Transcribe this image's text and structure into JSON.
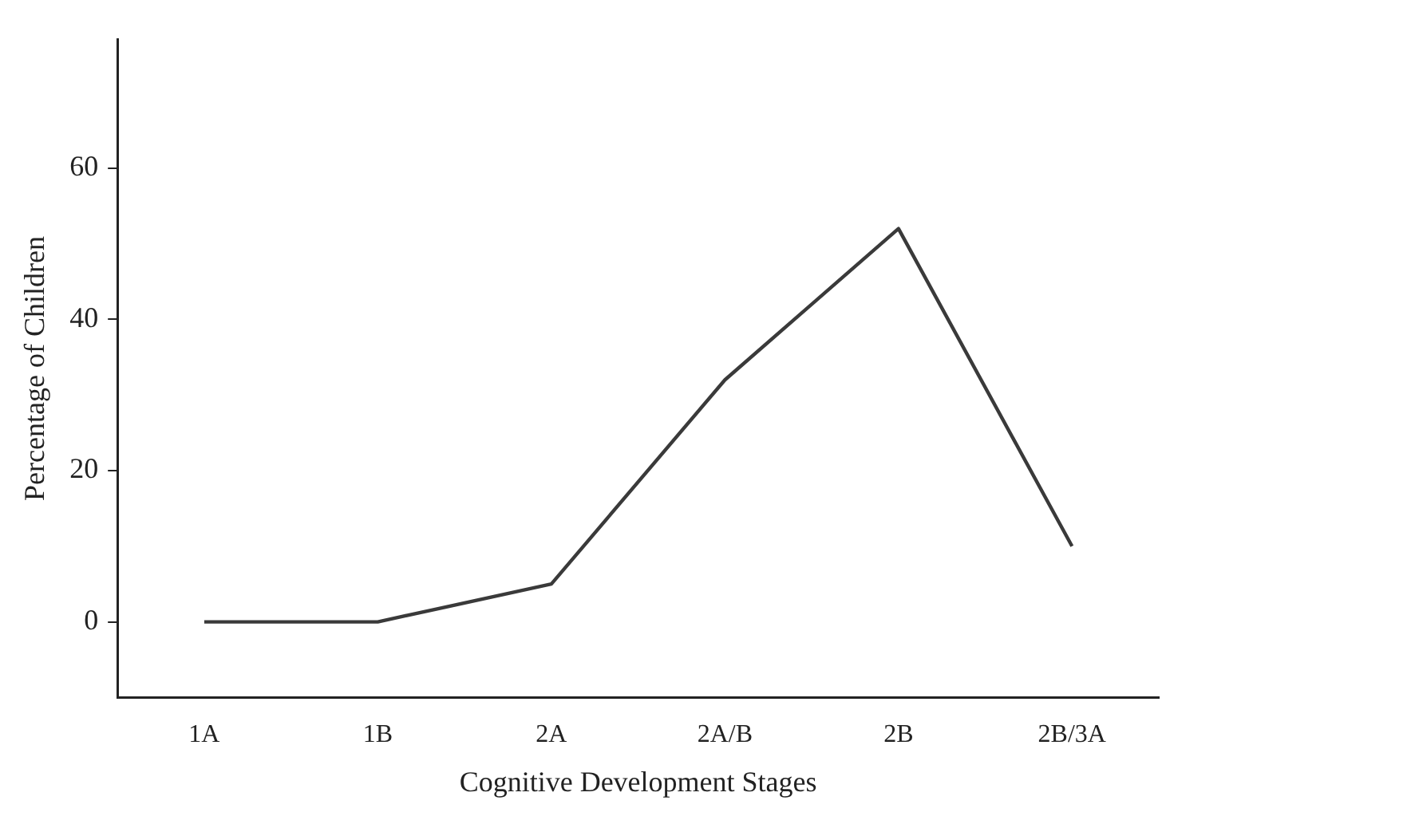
{
  "chart_data": {
    "type": "line",
    "xlabel": "Cognitive Development Stages",
    "ylabel": "Percentage of Children",
    "categories": [
      "1A",
      "1B",
      "2A",
      "2A/B",
      "2B",
      "2B/3A"
    ],
    "series": [
      {
        "color": "#3a3a3a",
        "values": [
          0,
          0,
          5,
          32,
          52,
          10
        ]
      }
    ],
    "ylim": [
      -10,
      77
    ],
    "yticks": [
      0,
      20,
      40,
      60
    ],
    "grid": false,
    "legend": false,
    "marker": "none",
    "line_style": "solid"
  }
}
